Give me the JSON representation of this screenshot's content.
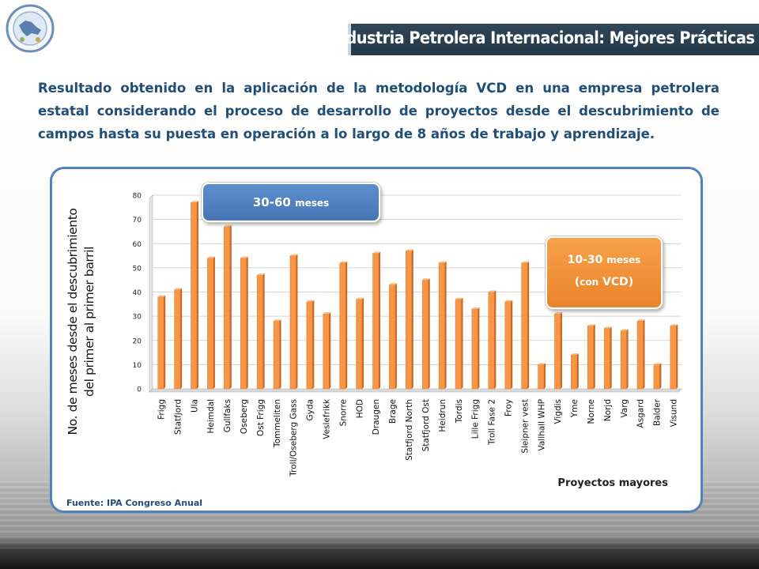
{
  "header": {
    "title": "Industria Petrolera Internacional: Mejores Prácticas",
    "bar_color": "#2f4657"
  },
  "logo": {
    "icon": "organization-seal-icon"
  },
  "intro": {
    "text": "Resultado obtenido en la aplicación de la metodología VCD en una empresa petrolera estatal  considerando el proceso de desarrollo de proyectos desde el descubrimiento de campos hasta su puesta en operación a lo largo de 8 años de trabajo  y aprendizaje."
  },
  "callouts": {
    "blue": {
      "main": "30-60",
      "unit": "meses",
      "color": "#4f81bd"
    },
    "orange": {
      "main": "10-30",
      "unit": "meses",
      "line2_open": "(",
      "line2_small": "con",
      "line2_rest": " VCD)",
      "color": "#f79646"
    }
  },
  "source": "Fuente:  IPA Congreso Anual",
  "chart_data": {
    "type": "bar",
    "ylabel_line1": "No. de meses desde el descubrimiento",
    "ylabel_line2": "del primer al primer barril",
    "xlabel": "Proyectos mayores",
    "ylim": [
      0,
      80
    ],
    "yticks": [
      0,
      10,
      20,
      30,
      40,
      50,
      60,
      70,
      80
    ],
    "grid": true,
    "bar_color": "#f79646",
    "categories": [
      "Frigg",
      "Statfjord",
      "Ula",
      "Heimdal",
      "Gullfaks",
      "Oseberg",
      "Ost Frigg",
      "Tommeliten",
      "Troll/Oseberg Gass",
      "Gyda",
      "Veslefrikk",
      "Snorre",
      "HOD",
      "Draugen",
      "Brage",
      "Statfjord North",
      "Statfjord Ost",
      "Heidrun",
      "Tordis",
      "Lille Frigg",
      "Troll Fase 2",
      "Froy",
      "Sleipner vest",
      "Vallhall WHP",
      "Vigdis",
      "Yme",
      "Norne",
      "Norjd",
      "Varg",
      "Asgard",
      "Balder",
      "Visund"
    ],
    "values": [
      38,
      41,
      77,
      54,
      67,
      54,
      47,
      28,
      55,
      36,
      31,
      52,
      37,
      56,
      43,
      57,
      45,
      52,
      37,
      33,
      40,
      36,
      52,
      10,
      31,
      14,
      26,
      25,
      24,
      28,
      10,
      26
    ]
  }
}
